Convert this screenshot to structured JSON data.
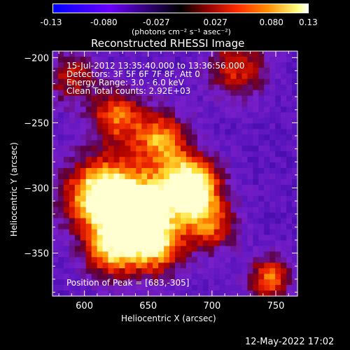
{
  "colorbar": {
    "ticks": [
      "-0.13",
      "-0.080",
      "-0.027",
      "0.027",
      "0.080",
      "0.13"
    ],
    "units": "(photons cm⁻² s⁻¹ asec⁻²)"
  },
  "chart_data": {
    "type": "heatmap",
    "title": "Reconstructed RHESSI Image",
    "xlabel": "Heliocentric X (arcsec)",
    "ylabel": "Heliocentric Y (arcsec)",
    "xlim": [
      575,
      767
    ],
    "ylim": [
      -383,
      -195
    ],
    "xticks": [
      600,
      650,
      700,
      750
    ],
    "yticks": [
      -200,
      -250,
      -300,
      -350
    ],
    "colorscale_range": [
      -0.13,
      0.13
    ],
    "annotations": {
      "time_range": "15-Jul-2012 13:35:40.000 to 13:36:56.000",
      "detectors": "Detectors: 3F 5F 6F 7F 8F, Att 0",
      "energy": "Energy Range: 3.0 - 6.0 keV",
      "method": "Clean     Total counts: 2.92E+03",
      "peak": "Position of Peak = [683,-305]"
    },
    "peak": {
      "x": 683,
      "y": -305
    }
  },
  "footer": {
    "timestamp": "12-May-2022 17:02"
  }
}
